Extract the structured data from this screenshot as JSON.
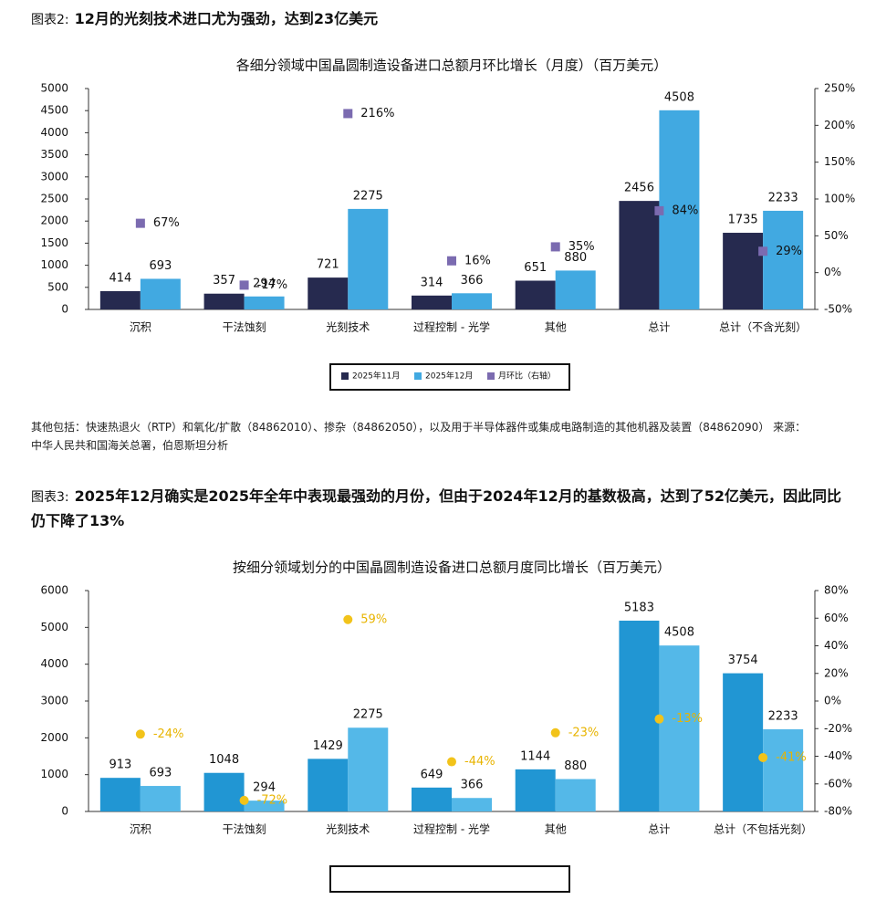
{
  "captions": [
    {
      "label": "图表2:",
      "text": "12月的光刻技术进口尤为强劲，达到23亿美元"
    },
    {
      "label": "图表3:",
      "text": "2025年12月确实是2025年全年中表现最强劲的月份，但由于2024年12月的基数极高，达到了52亿美元，因此同比仍下降了13%"
    }
  ],
  "note": "其他包括：快速热退火（RTP）和氧化/扩散（84862010）、掺杂（84862050），以及用于半导体器件或集成电路制造的其他机器及装置（84862090） 来源：中华人民共和国海关总署，伯恩斯坦分析",
  "chart_data": [
    {
      "type": "bar",
      "title": "各细分领域中国晶圆制造设备进口总额月环比增长（月度）（百万美元）",
      "categories": [
        "沉积",
        "干法蚀刻",
        "光刻技术",
        "过程控制 - 光学",
        "其他",
        "总计",
        "总计（不含光刻）"
      ],
      "series": [
        {
          "name": "2025年11月",
          "color": "#262a4f",
          "values": [
            414,
            357,
            721,
            314,
            651,
            2456,
            1735
          ]
        },
        {
          "name": "2025年12月",
          "color": "#41a9e1",
          "values": [
            693,
            294,
            2275,
            366,
            880,
            4508,
            2233
          ]
        },
        {
          "name": "月环比（右轴）",
          "color": "#7b6bb0",
          "type": "scatter",
          "axis": "y2",
          "values": [
            67,
            -17,
            216,
            16,
            35,
            84,
            29
          ],
          "value_labels": [
            "67%",
            "-17%",
            "216%",
            "16%",
            "35%",
            "84%",
            "29%"
          ]
        }
      ],
      "ylim": [
        0,
        5000
      ],
      "yticks": [
        0,
        500,
        1000,
        1500,
        2000,
        2500,
        3000,
        3500,
        4000,
        4500,
        5000
      ],
      "y2lim": [
        -50,
        250
      ],
      "y2ticks": [
        {
          "value": -50,
          "label": "-50%"
        },
        {
          "value": 0,
          "label": "0%"
        },
        {
          "value": 50,
          "label": "50%"
        },
        {
          "value": 100,
          "label": "100%"
        },
        {
          "value": 150,
          "label": "150%"
        },
        {
          "value": 200,
          "label": "200%"
        },
        {
          "value": 250,
          "label": "250%"
        }
      ],
      "legend": "bottom"
    },
    {
      "type": "bar",
      "title": "按细分领域划分的中国晶圆制造设备进口总额月度同比增长（百万美元）",
      "categories": [
        "沉积",
        "干法蚀刻",
        "光刻技术",
        "过程控制 - 光学",
        "其他",
        "总计",
        "总计（不包括光刻）"
      ],
      "series": [
        {
          "color": "#2196d3",
          "values": [
            913,
            1048,
            1429,
            649,
            1144,
            5183,
            3754
          ]
        },
        {
          "color": "#54b8e8",
          "values": [
            693,
            294,
            2275,
            366,
            880,
            4508,
            2233
          ]
        },
        {
          "color": "#f2c31a",
          "type": "scatter",
          "axis": "y2",
          "values": [
            -24,
            -72,
            59,
            -44,
            -23,
            -13,
            -41
          ],
          "value_labels": [
            "-24%",
            "-72%",
            "59%",
            "-44%",
            "-23%",
            "-13%",
            "-41%"
          ]
        }
      ],
      "ylim": [
        0,
        6000
      ],
      "yticks": [
        0,
        1000,
        2000,
        3000,
        4000,
        5000,
        6000
      ],
      "y2lim": [
        -80,
        80
      ],
      "y2ticks": [
        {
          "value": -80,
          "label": "-80%"
        },
        {
          "value": -60,
          "label": "-60%"
        },
        {
          "value": -40,
          "label": "-40%"
        },
        {
          "value": -20,
          "label": "-20%"
        },
        {
          "value": 0,
          "label": "0%"
        },
        {
          "value": 20,
          "label": "20%"
        },
        {
          "value": 40,
          "label": "40%"
        },
        {
          "value": 60,
          "label": "60%"
        },
        {
          "value": 80,
          "label": "80%"
        }
      ],
      "legend": "bottom"
    }
  ]
}
